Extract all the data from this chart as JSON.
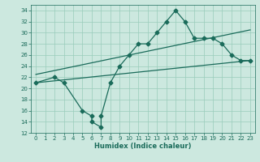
{
  "xlabel": "Humidex (Indice chaleur)",
  "bg_color": "#cce8df",
  "grid_color": "#99ccbb",
  "line_color": "#1a6b5a",
  "xlim": [
    -0.5,
    23.5
  ],
  "ylim": [
    12,
    35
  ],
  "xticks": [
    0,
    1,
    2,
    3,
    4,
    5,
    6,
    7,
    8,
    9,
    10,
    11,
    12,
    13,
    14,
    15,
    16,
    17,
    18,
    19,
    20,
    21,
    22,
    23
  ],
  "yticks": [
    12,
    14,
    16,
    18,
    20,
    22,
    24,
    26,
    28,
    30,
    32,
    34
  ],
  "line1_x": [
    0,
    2,
    3,
    5,
    6,
    6,
    7,
    7,
    8,
    9,
    10,
    11,
    12,
    13,
    14,
    15,
    16,
    17,
    18,
    19,
    20,
    21,
    22,
    23
  ],
  "line1_y": [
    21,
    22,
    21,
    16,
    15,
    14,
    13,
    15,
    21,
    24,
    26,
    28,
    28,
    30,
    32,
    34,
    32,
    29,
    29,
    29,
    28,
    26,
    25,
    25
  ],
  "line2_x": [
    0,
    23
  ],
  "line2_y": [
    21,
    25
  ],
  "line3_x": [
    0,
    23
  ],
  "line3_y": [
    22.5,
    30.5
  ],
  "marker": "D",
  "markersize": 2.5,
  "linewidth": 0.9,
  "xlabel_fontsize": 6.0,
  "tick_fontsize": 5.0
}
